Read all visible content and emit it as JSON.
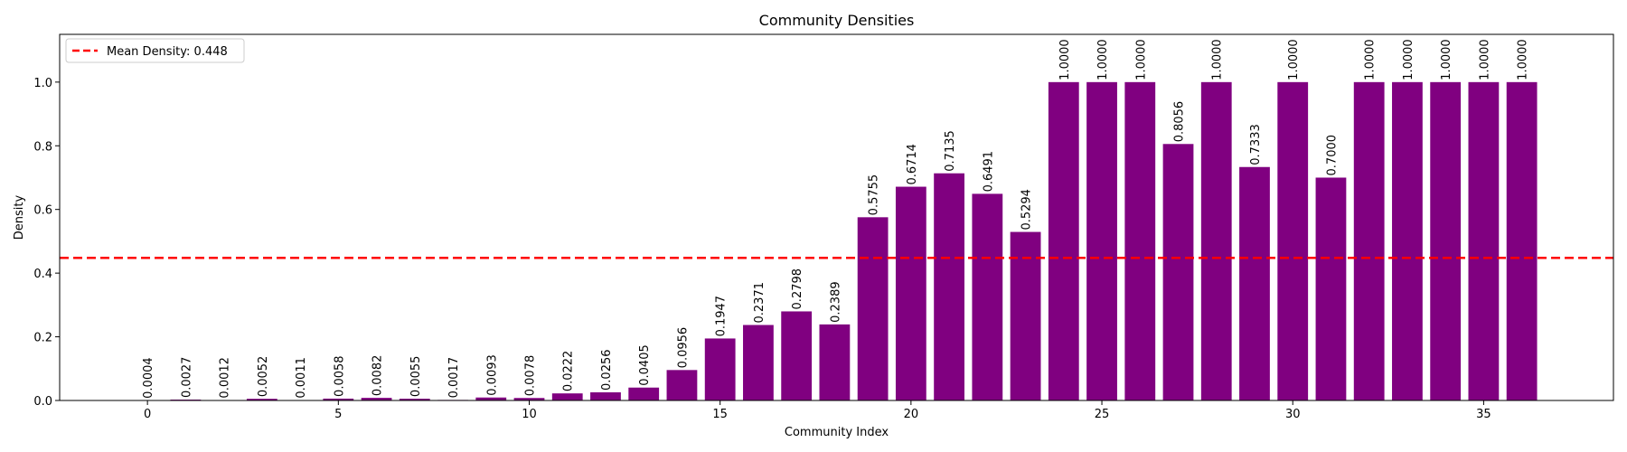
{
  "chart_data": {
    "type": "bar",
    "title": "Community Densities",
    "xlabel": "Community Index",
    "ylabel": "Density",
    "x": [
      0,
      1,
      2,
      3,
      4,
      5,
      6,
      7,
      8,
      9,
      10,
      11,
      12,
      13,
      14,
      15,
      16,
      17,
      18,
      19,
      20,
      21,
      22,
      23,
      24,
      25,
      26,
      27,
      28,
      29,
      30,
      31,
      32,
      33,
      34,
      35,
      36
    ],
    "values": [
      0.0004,
      0.0027,
      0.0012,
      0.0052,
      0.0011,
      0.0058,
      0.0082,
      0.0055,
      0.0017,
      0.0093,
      0.0078,
      0.0222,
      0.0256,
      0.0405,
      0.0956,
      0.1947,
      0.2371,
      0.2798,
      0.2389,
      0.5755,
      0.6714,
      0.7135,
      0.6491,
      0.5294,
      1.0,
      1.0,
      1.0,
      0.8056,
      1.0,
      0.7333,
      1.0,
      0.7,
      1.0,
      1.0,
      1.0,
      1.0,
      1.0
    ],
    "data_labels": [
      "0.0004",
      "0.0027",
      "0.0012",
      "0.0052",
      "0.0011",
      "0.0058",
      "0.0082",
      "0.0055",
      "0.0017",
      "0.0093",
      "0.0078",
      "0.0222",
      "0.0256",
      "0.0405",
      "0.0956",
      "0.1947",
      "0.2371",
      "0.2798",
      "0.2389",
      "0.5755",
      "0.6714",
      "0.7135",
      "0.6491",
      "0.5294",
      "1.0000",
      "1.0000",
      "1.0000",
      "0.8056",
      "1.0000",
      "0.7333",
      "1.0000",
      "0.7000",
      "1.0000",
      "1.0000",
      "1.0000",
      "1.0000",
      "1.0000"
    ],
    "bar_color": "#800080",
    "xlim": [
      -2.3,
      38.4
    ],
    "ylim": [
      0,
      1.15
    ],
    "xticks": [
      0,
      5,
      10,
      15,
      20,
      25,
      30,
      35
    ],
    "xtick_labels": [
      "0",
      "5",
      "10",
      "15",
      "20",
      "25",
      "30",
      "35"
    ],
    "yticks": [
      0,
      0.2,
      0.4,
      0.6,
      0.8,
      1.0
    ],
    "ytick_labels": [
      "0.0",
      "0.2",
      "0.4",
      "0.6",
      "0.8",
      "1.0"
    ],
    "mean_line": {
      "value": 0.448,
      "color": "#ff0000",
      "style": "dashed"
    },
    "legend": {
      "label": "Mean Density: 0.448",
      "placement": "upper-left"
    },
    "grid": false
  }
}
